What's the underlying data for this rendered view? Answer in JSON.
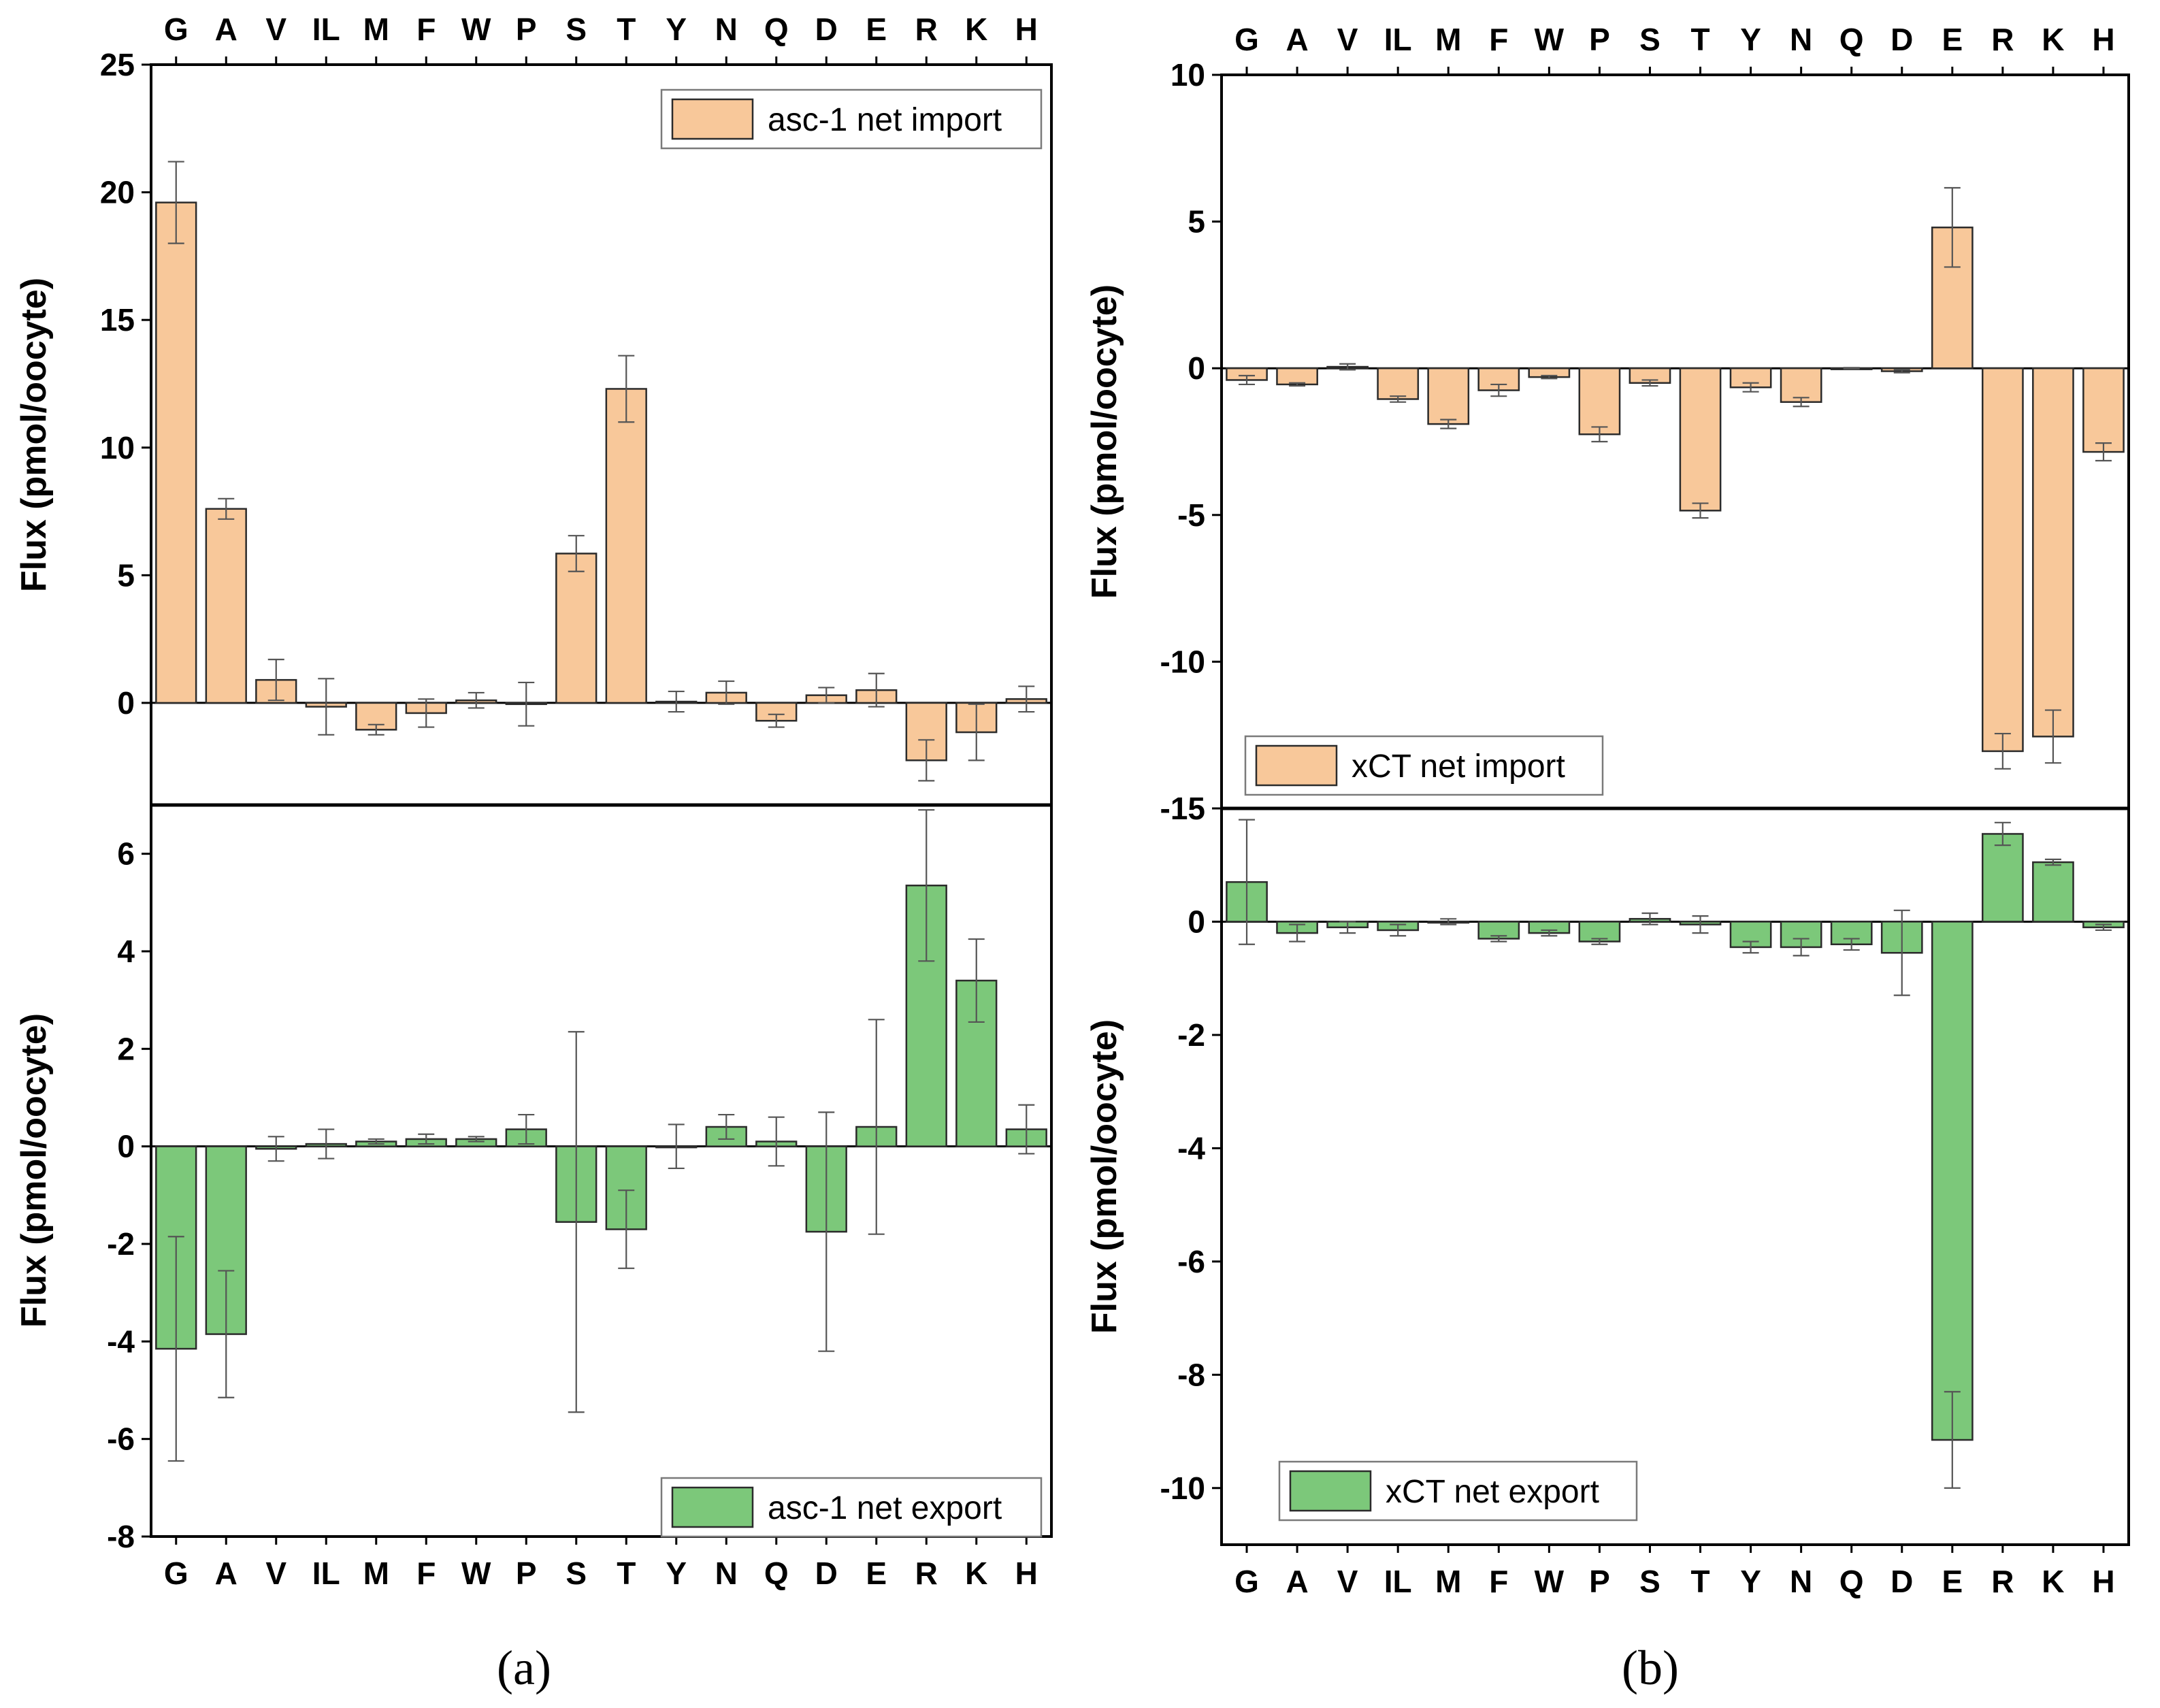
{
  "colors": {
    "import": "#f8c89a",
    "export": "#7cc87a"
  },
  "panel_labels": {
    "a": "(a)",
    "b": "(b)"
  },
  "chart_data": [
    {
      "id": "a-top",
      "type": "bar",
      "panel": "a",
      "categories": [
        "G",
        "A",
        "V",
        "IL",
        "M",
        "F",
        "W",
        "P",
        "S",
        "T",
        "Y",
        "N",
        "Q",
        "D",
        "E",
        "R",
        "K",
        "H"
      ],
      "values": [
        19.6,
        7.6,
        0.9,
        -0.15,
        -1.05,
        -0.4,
        0.1,
        -0.05,
        5.85,
        12.3,
        0.05,
        0.4,
        -0.7,
        0.3,
        0.5,
        -2.25,
        -1.15,
        0.15
      ],
      "errors": [
        1.6,
        0.4,
        0.8,
        1.1,
        0.2,
        0.55,
        0.3,
        0.85,
        0.7,
        1.3,
        0.4,
        0.45,
        0.25,
        0.3,
        0.65,
        0.8,
        1.1,
        0.5
      ],
      "ylim": [
        -4,
        25
      ],
      "yticks": [
        0,
        5,
        10,
        15,
        20,
        25
      ],
      "ylabel": "Flux (pmol/oocyte)",
      "legend": "asc-1 net import",
      "legend_position": "top-right",
      "color_key": "import",
      "show_top_categories": true,
      "show_bottom_categories": false
    },
    {
      "id": "a-bottom",
      "type": "bar",
      "panel": "a",
      "categories": [
        "G",
        "A",
        "V",
        "IL",
        "M",
        "F",
        "W",
        "P",
        "S",
        "T",
        "Y",
        "N",
        "Q",
        "D",
        "E",
        "R",
        "K",
        "H"
      ],
      "values": [
        -4.15,
        -3.85,
        -0.05,
        0.05,
        0.1,
        0.15,
        0.15,
        0.35,
        -1.55,
        -1.7,
        0.0,
        0.4,
        0.1,
        -1.75,
        0.4,
        5.35,
        3.4,
        0.35
      ],
      "errors": [
        2.3,
        1.3,
        0.25,
        0.3,
        0.05,
        0.1,
        0.05,
        0.3,
        3.9,
        0.8,
        0.45,
        0.25,
        0.5,
        2.45,
        2.2,
        1.55,
        0.85,
        0.5
      ],
      "ylim": [
        -8,
        7
      ],
      "yticks": [
        -8,
        -6,
        -4,
        -2,
        0,
        2,
        4,
        6
      ],
      "ylabel": "Flux (pmol/oocyte)",
      "legend": "asc-1 net export",
      "legend_position": "bottom-right",
      "color_key": "export",
      "show_top_categories": false,
      "show_bottom_categories": true
    },
    {
      "id": "b-top",
      "type": "bar",
      "panel": "b",
      "categories": [
        "G",
        "A",
        "V",
        "IL",
        "M",
        "F",
        "W",
        "P",
        "S",
        "T",
        "Y",
        "N",
        "Q",
        "D",
        "E",
        "R",
        "K",
        "H"
      ],
      "values": [
        -0.4,
        -0.55,
        0.05,
        -1.05,
        -1.9,
        -0.75,
        -0.3,
        -2.25,
        -0.5,
        -4.85,
        -0.65,
        -1.15,
        0.0,
        -0.1,
        4.8,
        -13.05,
        -12.55,
        -2.85
      ],
      "errors": [
        0.15,
        0.05,
        0.1,
        0.1,
        0.15,
        0.2,
        0.05,
        0.25,
        0.1,
        0.25,
        0.15,
        0.15,
        0.02,
        0.05,
        1.35,
        0.6,
        0.9,
        0.3
      ],
      "ylim": [
        -15,
        10
      ],
      "yticks": [
        -10,
        -5,
        0,
        5,
        10
      ],
      "ylabel": "Flux (pmol/oocyte)",
      "legend": "xCT net import",
      "legend_position": "bottom-left",
      "color_key": "import",
      "show_top_categories": true,
      "show_bottom_categories": false
    },
    {
      "id": "b-bottom",
      "type": "bar",
      "panel": "b",
      "categories": [
        "G",
        "A",
        "V",
        "IL",
        "M",
        "F",
        "W",
        "P",
        "S",
        "T",
        "Y",
        "N",
        "Q",
        "D",
        "E",
        "R",
        "K",
        "H"
      ],
      "values": [
        0.7,
        -0.2,
        -0.1,
        -0.15,
        0.0,
        -0.3,
        -0.2,
        -0.35,
        0.05,
        -0.05,
        -0.45,
        -0.45,
        -0.4,
        -0.55,
        -9.15,
        1.55,
        1.05,
        -0.1
      ],
      "errors": [
        1.1,
        0.15,
        0.1,
        0.1,
        0.05,
        0.05,
        0.05,
        0.05,
        0.1,
        0.15,
        0.1,
        0.15,
        0.1,
        0.75,
        0.85,
        0.2,
        0.05,
        0.05
      ],
      "ylim": [
        -11,
        2
      ],
      "yticks": [
        -10,
        -8,
        -6,
        -4,
        -2,
        0
      ],
      "ylabel": "Flux (pmol/oocyte)",
      "legend": "xCT net export",
      "legend_position": "bottom-left",
      "color_key": "export",
      "show_top_categories": false,
      "show_bottom_categories": true
    }
  ],
  "shared_tick_label": "-15"
}
